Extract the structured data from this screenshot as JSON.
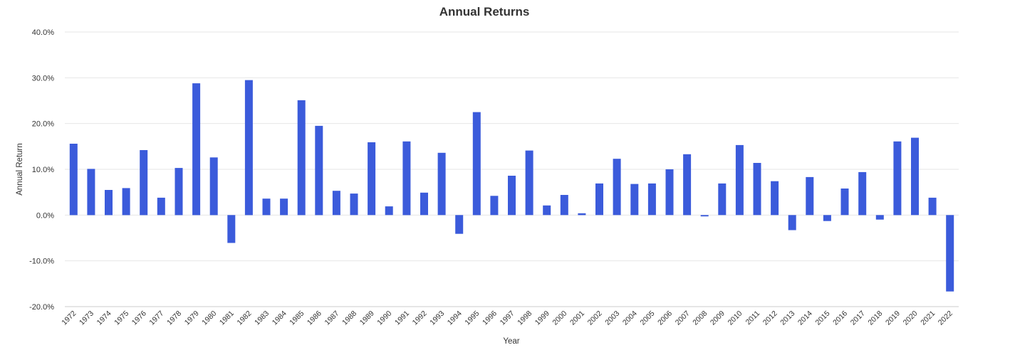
{
  "chart_data": {
    "type": "bar",
    "title": "Annual Returns",
    "xlabel": "Year",
    "ylabel": "Annual Return",
    "ylim": [
      -20,
      40
    ],
    "yticks": [
      -20,
      -10,
      0,
      10,
      20,
      30,
      40
    ],
    "ytick_labels": [
      "-20.0%",
      "-10.0%",
      "0.0%",
      "10.0%",
      "20.0%",
      "30.0%",
      "40.0%"
    ],
    "grid": true,
    "legend": "none",
    "bar_color": "#3b5bdb",
    "categories": [
      "1972",
      "1973",
      "1974",
      "1975",
      "1976",
      "1977",
      "1978",
      "1979",
      "1980",
      "1981",
      "1982",
      "1983",
      "1984",
      "1985",
      "1986",
      "1987",
      "1988",
      "1989",
      "1990",
      "1991",
      "1992",
      "1993",
      "1994",
      "1995",
      "1996",
      "1997",
      "1998",
      "1999",
      "2000",
      "2001",
      "2002",
      "2003",
      "2004",
      "2005",
      "2006",
      "2007",
      "2008",
      "2009",
      "2010",
      "2011",
      "2012",
      "2013",
      "2014",
      "2015",
      "2016",
      "2017",
      "2018",
      "2019",
      "2020",
      "2021",
      "2022"
    ],
    "values": [
      15.6,
      10.1,
      5.5,
      5.9,
      14.2,
      3.8,
      10.3,
      28.8,
      12.6,
      -6.1,
      29.5,
      3.6,
      3.6,
      25.1,
      19.5,
      5.3,
      4.7,
      15.9,
      1.9,
      16.1,
      4.9,
      13.6,
      -4.1,
      22.5,
      4.2,
      8.6,
      14.1,
      2.1,
      4.4,
      0.4,
      6.9,
      12.3,
      6.8,
      6.9,
      10.0,
      13.3,
      -0.3,
      6.9,
      15.3,
      11.4,
      7.4,
      -3.3,
      8.3,
      -1.3,
      5.8,
      9.4,
      -1.0,
      16.1,
      16.9,
      3.8,
      -16.7
    ]
  }
}
